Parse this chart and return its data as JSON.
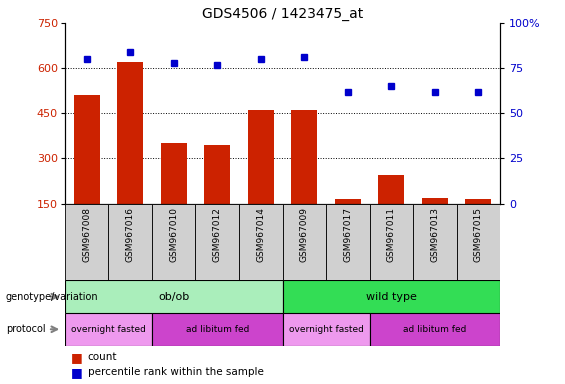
{
  "title": "GDS4506 / 1423475_at",
  "samples": [
    "GSM967008",
    "GSM967016",
    "GSM967010",
    "GSM967012",
    "GSM967014",
    "GSM967009",
    "GSM967017",
    "GSM967011",
    "GSM967013",
    "GSM967015"
  ],
  "counts": [
    510,
    620,
    350,
    345,
    460,
    460,
    165,
    245,
    170,
    165
  ],
  "percentiles": [
    80,
    84,
    78,
    77,
    80,
    81,
    62,
    65,
    62,
    62
  ],
  "ylim_left": [
    150,
    750
  ],
  "ylim_right": [
    0,
    100
  ],
  "yticks_left": [
    150,
    300,
    450,
    600,
    750
  ],
  "yticks_right": [
    0,
    25,
    50,
    75,
    100
  ],
  "bar_color": "#cc2200",
  "dot_color": "#0000cc",
  "bg_color": "#ffffff",
  "sample_box_color": "#d0d0d0",
  "genotype_groups": [
    {
      "label": "ob/ob",
      "start": 0,
      "end": 5,
      "color": "#aaeebb"
    },
    {
      "label": "wild type",
      "start": 5,
      "end": 10,
      "color": "#33dd55"
    }
  ],
  "protocol_groups": [
    {
      "label": "overnight fasted",
      "start": 0,
      "end": 2,
      "color": "#ee99ee"
    },
    {
      "label": "ad libitum fed",
      "start": 2,
      "end": 5,
      "color": "#cc44cc"
    },
    {
      "label": "overnight fasted",
      "start": 5,
      "end": 7,
      "color": "#ee99ee"
    },
    {
      "label": "ad libitum fed",
      "start": 7,
      "end": 10,
      "color": "#cc44cc"
    }
  ],
  "legend_items": [
    {
      "label": "count",
      "color": "#cc2200"
    },
    {
      "label": "percentile rank within the sample",
      "color": "#0000cc"
    }
  ],
  "tick_label_color_left": "#cc2200",
  "tick_label_color_right": "#0000cc"
}
